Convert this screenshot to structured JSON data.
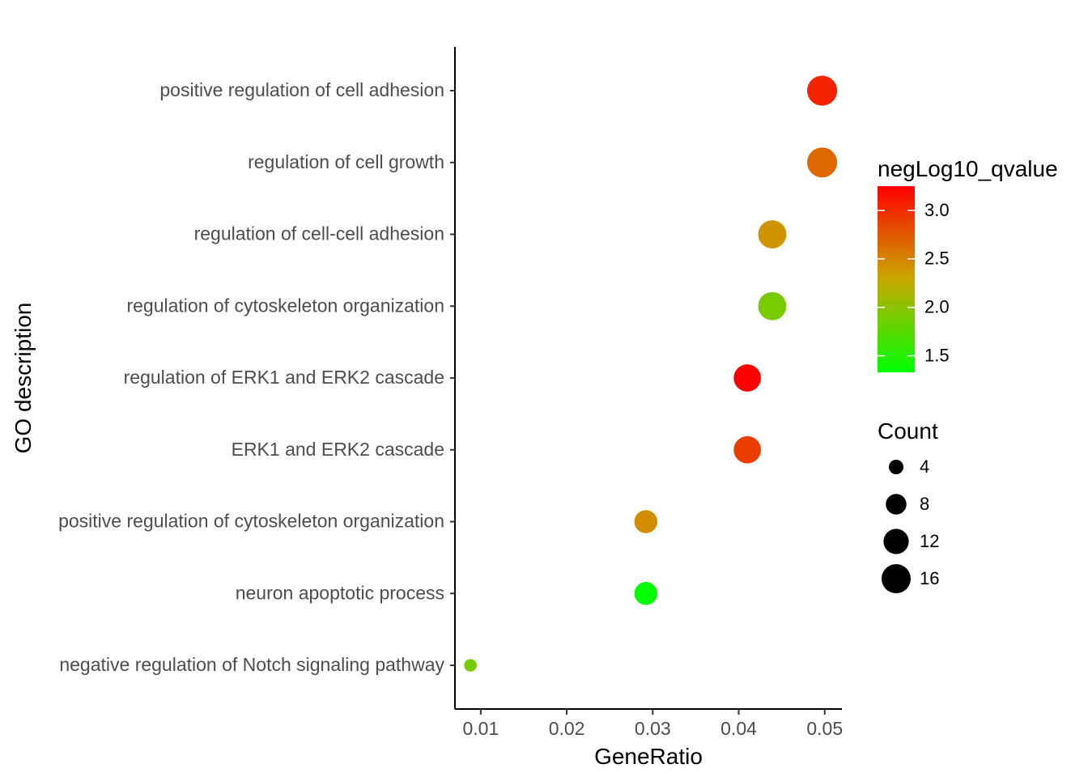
{
  "chart_data": {
    "type": "scatter",
    "xlabel": "GeneRatio",
    "ylabel": "GO description",
    "x_ticks": [
      "0.01",
      "0.02",
      "0.03",
      "0.04",
      "0.05"
    ],
    "x_tick_values": [
      0.01,
      0.02,
      0.03,
      0.04,
      0.05
    ],
    "xlim": [
      0.007,
      0.052
    ],
    "grid": false,
    "categories": [
      "positive regulation of cell adhesion",
      "regulation of cell growth",
      "regulation of cell-cell adhesion",
      "regulation of cytoskeleton organization",
      "regulation of ERK1 and ERK2 cascade",
      "ERK1 and ERK2 cascade",
      "positive regulation of cytoskeleton organization",
      "neuron apoptotic process",
      "negative regulation of Notch signaling pathway"
    ],
    "points": [
      {
        "category": "positive regulation of cell adhesion",
        "gene_ratio": 0.0497,
        "count": 17,
        "negLog10_qvalue": 3.05
      },
      {
        "category": "regulation of cell growth",
        "gene_ratio": 0.0497,
        "count": 17,
        "negLog10_qvalue": 2.65
      },
      {
        "category": "regulation of cell-cell adhesion",
        "gene_ratio": 0.0439,
        "count": 15,
        "negLog10_qvalue": 2.4
      },
      {
        "category": "regulation of cytoskeleton organization",
        "gene_ratio": 0.0439,
        "count": 15,
        "negLog10_qvalue": 1.9
      },
      {
        "category": "regulation of ERK1 and ERK2 cascade",
        "gene_ratio": 0.041,
        "count": 14,
        "negLog10_qvalue": 3.25
      },
      {
        "category": "ERK1 and ERK2 cascade",
        "gene_ratio": 0.041,
        "count": 14,
        "negLog10_qvalue": 2.9
      },
      {
        "category": "positive regulation of cytoskeleton organization",
        "gene_ratio": 0.0292,
        "count": 10,
        "negLog10_qvalue": 2.45
      },
      {
        "category": "neuron apoptotic process",
        "gene_ratio": 0.0292,
        "count": 10,
        "negLog10_qvalue": 1.35
      },
      {
        "category": "negative regulation of Notch signaling pathway",
        "gene_ratio": 0.0088,
        "count": 3,
        "negLog10_qvalue": 1.9
      }
    ],
    "color_legend": {
      "title": "negLog10_qvalue",
      "min": 1.33,
      "max": 3.25,
      "low_color": "#00ff00",
      "mid_color": "#c8a800",
      "high_color": "#ff0000",
      "ticks": [
        {
          "label": "3.0",
          "value": 3.0
        },
        {
          "label": "2.5",
          "value": 2.5
        },
        {
          "label": "2.0",
          "value": 2.0
        },
        {
          "label": "1.5",
          "value": 1.5
        }
      ]
    },
    "size_legend": {
      "title": "Count",
      "entries": [
        {
          "label": "4",
          "value": 4
        },
        {
          "label": "8",
          "value": 8
        },
        {
          "label": "12",
          "value": 12
        },
        {
          "label": "16",
          "value": 16
        }
      ]
    },
    "legend_position": "right"
  }
}
